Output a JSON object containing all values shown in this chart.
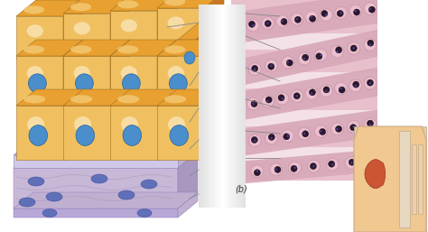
{
  "fig_width": 4.74,
  "fig_height": 2.57,
  "dpi": 100,
  "bg_color": "#ffffff",
  "cell_top_color": "#e8a030",
  "cell_top_highlight": "#f5d080",
  "cell_top_dark": "#c87820",
  "cell_side_color": "#d48820",
  "cell_side_light": "#f0c060",
  "nucleus_fill": "#4a8ecc",
  "nucleus_edge": "#2060a0",
  "basement_lavender": "#b8a8d8",
  "basement_light": "#d0c8e8",
  "connective_color": "#c0b0d0",
  "connective_fiber": "#a898c0",
  "connective_nuclei": "#6070b8",
  "bg_left": "#ffffff",
  "middle_panel_color": "#e0e0e0",
  "micro_bg": "#e8c0cc",
  "micro_dark": "#c090a8",
  "micro_pink": "#d8a8b8",
  "micro_nuclei": "#2a1830",
  "micro_lumen": "#f5e8ec",
  "anat_skin": "#f0c890",
  "anat_light": "#f8deb0",
  "anat_spine": "#e8d8c0",
  "anat_kidney": "#cc5533",
  "anat_vessel": "#f0e0cc",
  "label_b_color": "#333333",
  "line_color": "#888888",
  "line_width": 0.6
}
